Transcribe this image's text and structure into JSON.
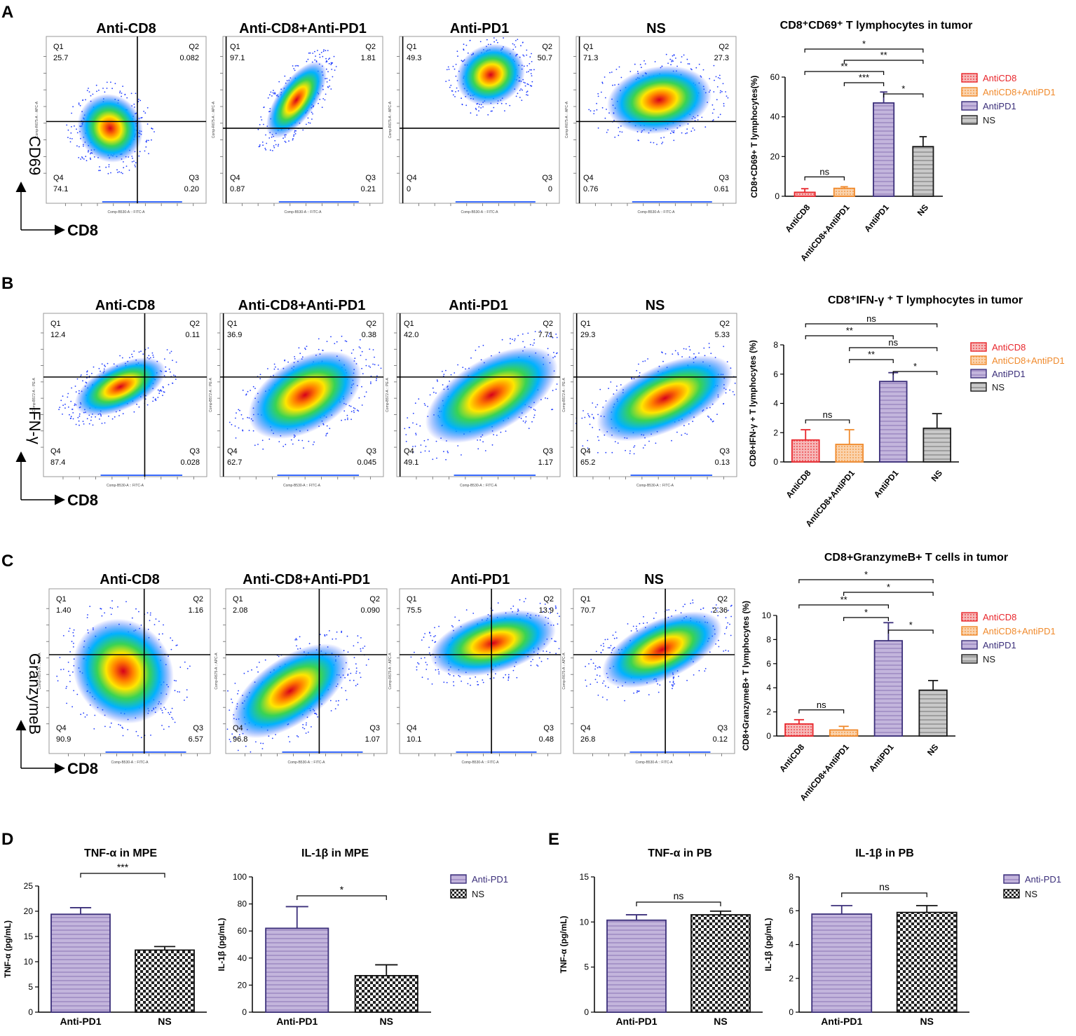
{
  "figure": {
    "panel_letters": [
      "A",
      "B",
      "C",
      "D",
      "E"
    ],
    "flow_sample_titles": [
      "Anti-CD8",
      "Anti-CD8+Anti-PD1",
      "Anti-PD1",
      "NS"
    ],
    "flow_x_label": "CD8",
    "flow_x_axis_caption": "Comp-B530-A :: FITC-A",
    "quadrant_labels": [
      "Q1",
      "Q2",
      "Q4",
      "Q3"
    ],
    "colors": {
      "AntiCD8": "#e8262c",
      "AntiCD8+AntiPD1": "#f08a2c",
      "AntiPD1": "#3b2f7a",
      "NS": "#1a1a1a",
      "purple_fill": "#b3a3cf",
      "red_fill": "#f3a0a0",
      "orange_fill": "#f8c79a",
      "gray_fill": "#b8b8b8"
    }
  },
  "flow_rows": [
    {
      "panel": "A",
      "y_label": "CD69",
      "y_axis_caption": "Comp-R675-A :: APC-A",
      "plots": [
        {
          "sample": "Anti-CD8",
          "q1": "25.7",
          "q2": "0.082",
          "q4": "74.1",
          "q3": "0.20"
        },
        {
          "sample": "Anti-CD8+Anti-PD1",
          "q1": "97.1",
          "q2": "1.81",
          "q4": "0.87",
          "q3": "0.21"
        },
        {
          "sample": "Anti-PD1",
          "q1": "49.3",
          "q2": "50.7",
          "q4": "0",
          "q3": "0"
        },
        {
          "sample": "NS",
          "q1": "71.3",
          "q2": "27.3",
          "q4": "0.76",
          "q3": "0.61"
        }
      ]
    },
    {
      "panel": "B",
      "y_label": "IFN-γ",
      "y_axis_caption": "Comp-B572-A :: PE-A",
      "plots": [
        {
          "sample": "Anti-CD8",
          "q1": "12.4",
          "q2": "0.11",
          "q4": "87.4",
          "q3": "0.028"
        },
        {
          "sample": "Anti-CD8+Anti-PD1",
          "q1": "36.9",
          "q2": "0.38",
          "q4": "62.7",
          "q3": "0.045"
        },
        {
          "sample": "Anti-PD1",
          "q1": "42.0",
          "q2": "7.71",
          "q4": "49.1",
          "q3": "1.17"
        },
        {
          "sample": "NS",
          "q1": "29.3",
          "q2": "5.33",
          "q4": "65.2",
          "q3": "0.13"
        }
      ]
    },
    {
      "panel": "C",
      "y_label": "GranzymeB",
      "y_axis_caption": "Comp-R675-A :: APC-A",
      "plots": [
        {
          "sample": "Anti-CD8",
          "q1": "1.40",
          "q2": "1.16",
          "q4": "90.9",
          "q3": "6.57"
        },
        {
          "sample": "Anti-CD8+Anti-PD1",
          "q1": "2.08",
          "q2": "0.090",
          "q4": "96.8",
          "q3": "1.07"
        },
        {
          "sample": "Anti-PD1",
          "q1": "75.5",
          "q2": "13.9",
          "q4": "10.1",
          "q3": "0.48"
        },
        {
          "sample": "NS",
          "q1": "70.7",
          "q2": "2.36",
          "q4": "26.8",
          "q3": "0.12"
        }
      ]
    }
  ],
  "chart_data": [
    {
      "type": "bar",
      "panel": "A",
      "title": "CD8⁺CD69⁺ T lymphocytes in tumor",
      "ylabel": "CD8+CD69+ T lymphocytes(%)",
      "categories": [
        "AntiCD8",
        "AntiCD8+AntiPD1",
        "AntiPD1",
        "NS"
      ],
      "values": [
        2,
        4,
        47,
        25
      ],
      "errors": [
        1.8,
        0.8,
        5.5,
        5
      ],
      "ylim": [
        0,
        60
      ],
      "yticks": [
        "0",
        "20",
        "40",
        "60"
      ],
      "legend": [
        "AntiCD8",
        "AntiCD8+AntiPD1",
        "AntiPD1",
        "NS"
      ],
      "significance": [
        {
          "from": 0,
          "to": 3,
          "label": "*"
        },
        {
          "from": 1,
          "to": 3,
          "label": "**"
        },
        {
          "from": 0,
          "to": 2,
          "label": "**"
        },
        {
          "from": 1,
          "to": 2,
          "label": "***"
        },
        {
          "from": 2,
          "to": 3,
          "label": "*"
        },
        {
          "from": 0,
          "to": 1,
          "label": "ns"
        }
      ]
    },
    {
      "type": "bar",
      "panel": "B",
      "title": "CD8⁺IFN-γ ⁺ T lymphocytes in tumor",
      "ylabel": "CD8+IFN-γ + T lymphocytes (%)",
      "categories": [
        "AntiCD8",
        "AntiCD8+AntiPD1",
        "AntiPD1",
        "NS"
      ],
      "values": [
        1.5,
        1.2,
        5.5,
        2.3
      ],
      "errors": [
        0.7,
        1.0,
        0.6,
        1.0
      ],
      "ylim": [
        0,
        8
      ],
      "yticks": [
        "0",
        "2",
        "4",
        "6",
        "8"
      ],
      "legend": [
        "AntiCD8",
        "AntiCD8+AntiPD1",
        "AntiPD1",
        "NS"
      ],
      "significance": [
        {
          "from": 0,
          "to": 3,
          "label": "ns"
        },
        {
          "from": 0,
          "to": 2,
          "label": "**"
        },
        {
          "from": 1,
          "to": 3,
          "label": "ns"
        },
        {
          "from": 1,
          "to": 2,
          "label": "**"
        },
        {
          "from": 2,
          "to": 3,
          "label": "*"
        },
        {
          "from": 0,
          "to": 1,
          "label": "ns"
        }
      ]
    },
    {
      "type": "bar",
      "panel": "C",
      "title": "CD8+GranzymeB+ T cells in tumor",
      "ylabel": "CD8+GranzymeB+ T lymphocytes (%)",
      "categories": [
        "AntiCD8",
        "AntiCD8+AntiPD1",
        "AntiPD1",
        "NS"
      ],
      "values": [
        1.0,
        0.5,
        7.9,
        3.8
      ],
      "errors": [
        0.35,
        0.3,
        1.5,
        0.8
      ],
      "ylim": [
        0,
        10
      ],
      "yticks": [
        "0",
        "2",
        "4",
        "6",
        "8",
        "10"
      ],
      "legend": [
        "AntiCD8",
        "AntiCD8+AntiPD1",
        "AntiPD1",
        "NS"
      ],
      "significance": [
        {
          "from": 0,
          "to": 3,
          "label": "*"
        },
        {
          "from": 1,
          "to": 3,
          "label": "*"
        },
        {
          "from": 0,
          "to": 2,
          "label": "**"
        },
        {
          "from": 1,
          "to": 2,
          "label": "*"
        },
        {
          "from": 2,
          "to": 3,
          "label": "*"
        },
        {
          "from": 0,
          "to": 1,
          "label": "ns"
        }
      ]
    },
    {
      "type": "bar",
      "panel": "D",
      "title": "TNF-α in MPE",
      "ylabel": "TNF-α (pg/mL)",
      "categories": [
        "Anti-PD1",
        "NS"
      ],
      "values": [
        19.4,
        12.3
      ],
      "errors": [
        1.3,
        0.7
      ],
      "ylim": [
        0,
        25
      ],
      "yticks": [
        "0",
        "5",
        "10",
        "15",
        "20",
        "25"
      ],
      "significance": [
        {
          "from": 0,
          "to": 1,
          "label": "***"
        }
      ]
    },
    {
      "type": "bar",
      "panel": "D",
      "title": "IL-1β in MPE",
      "ylabel": "IL-1β (pg/mL)",
      "categories": [
        "Anti-PD1",
        "NS"
      ],
      "values": [
        62,
        27
      ],
      "errors": [
        16,
        8
      ],
      "ylim": [
        0,
        100
      ],
      "yticks": [
        "0",
        "20",
        "40",
        "60",
        "80",
        "100"
      ],
      "legend": [
        "Anti-PD1",
        "NS"
      ],
      "significance": [
        {
          "from": 0,
          "to": 1,
          "label": "*"
        }
      ]
    },
    {
      "type": "bar",
      "panel": "E",
      "title": "TNF-α in PB",
      "ylabel": "TNF-α (pg/mL)",
      "categories": [
        "Anti-PD1",
        "NS"
      ],
      "values": [
        10.2,
        10.8
      ],
      "errors": [
        0.6,
        0.4
      ],
      "ylim": [
        0,
        15
      ],
      "yticks": [
        "0",
        "5",
        "10",
        "15"
      ],
      "significance": [
        {
          "from": 0,
          "to": 1,
          "label": "ns"
        }
      ]
    },
    {
      "type": "bar",
      "panel": "E",
      "title": "IL-1β in PB",
      "ylabel": "IL-1β (pg/mL)",
      "categories": [
        "Anti-PD1",
        "NS"
      ],
      "values": [
        5.8,
        5.9
      ],
      "errors": [
        0.5,
        0.4
      ],
      "ylim": [
        0,
        8
      ],
      "yticks": [
        "0",
        "2",
        "4",
        "6",
        "8"
      ],
      "legend": [
        "Anti-PD1",
        "NS"
      ],
      "significance": [
        {
          "from": 0,
          "to": 1,
          "label": "ns"
        }
      ]
    }
  ]
}
